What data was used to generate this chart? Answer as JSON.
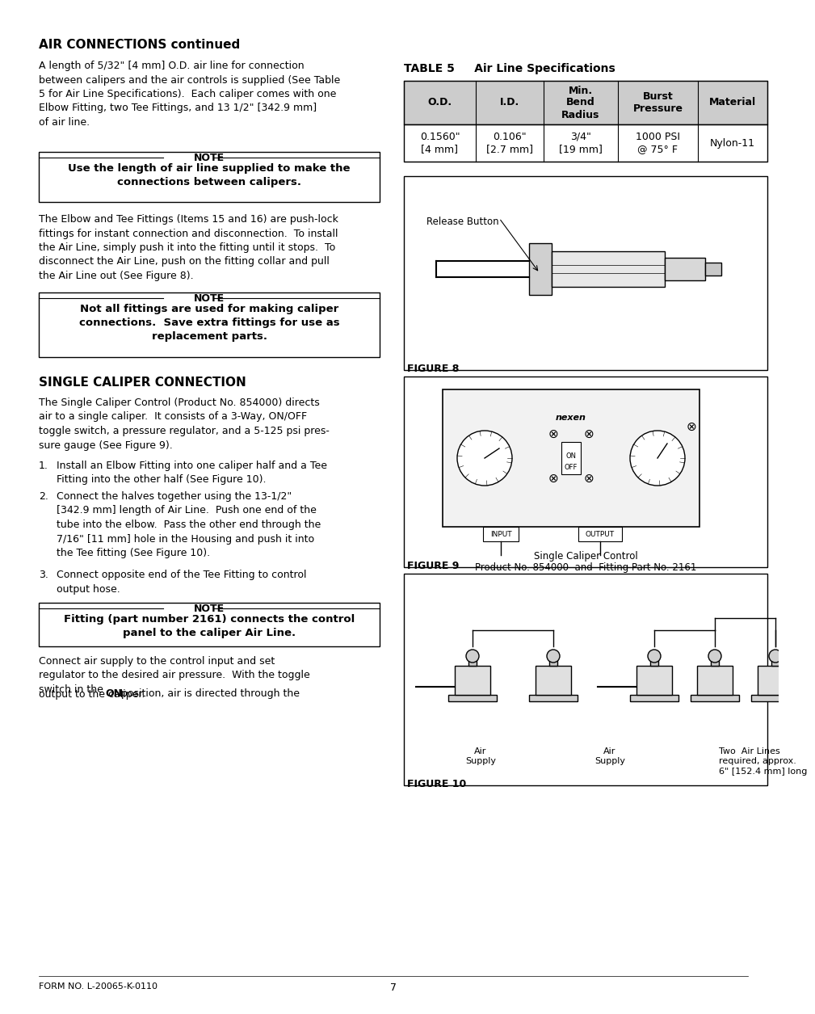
{
  "page_bg": "#ffffff",
  "page_width": 9.54,
  "page_height": 12.35,
  "dpi": 100,
  "section1_title": "AIR CONNECTIONS continued",
  "section2_title": "SINGLE CALIPER CONNECTION",
  "note1_label": "NOTE",
  "note1_text": "Use the length of air line supplied to make the\nconnections between calipers.",
  "note2_label": "NOTE",
  "note2_text": "Not all fittings are used for making caliper\nconnections.  Save extra fittings for use as\nreplacement parts.",
  "note3_label": "NOTE",
  "note3_text": "Fitting (part number 2161) connects the control\npanel to the caliper Air Line.",
  "table5_label": "TABLE 5",
  "table5_subtitle": "Air Line Specifications",
  "table5_headers": [
    "O.D.",
    "I.D.",
    "Min.\nBend\nRadius",
    "Burst\nPressure",
    "Material"
  ],
  "table5_row": [
    "0.1560\"\n[4 mm]",
    "0.106\"\n[2.7 mm]",
    "3/4\"\n[19 mm]",
    "1000 PSI\n@ 75° F",
    "Nylon-11"
  ],
  "fig8_label": "FIGURE 8",
  "fig8_caption": "Release Button",
  "fig9_label": "FIGURE 9",
  "fig9_caption1": "Single Caliper Control",
  "fig9_caption2": "Product No. 854000  and  Fitting Part No. 2161",
  "fig10_label": "FIGURE 10",
  "fig10_cap1": "Air\nSupply",
  "fig10_cap2": "Air\nSupply",
  "fig10_cap3": "Two  Air Lines\nrequired, approx.\n6\" [152.4 mm] long",
  "footer_left": "FORM NO. L-20065-K-0110",
  "footer_center": "7"
}
